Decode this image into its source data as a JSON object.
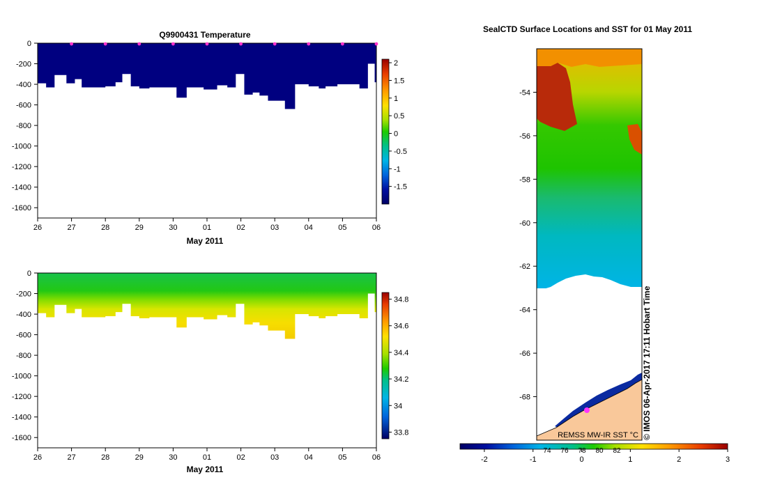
{
  "chart_data": [
    {
      "type": "heatmap",
      "title": "Q9900431  Temperature",
      "xlabel": "May 2011",
      "ylabel": "",
      "x_tick_labels": [
        "26",
        "27",
        "28",
        "29",
        "30",
        "01",
        "02",
        "03",
        "04",
        "05",
        "06"
      ],
      "x_range_days": [
        0,
        10.1
      ],
      "ylim": [
        -1700,
        0
      ],
      "y_ticks": [
        0,
        -200,
        -400,
        -600,
        -800,
        -1000,
        -1200,
        -1400,
        -1600
      ],
      "colorbar": {
        "min": -2.0,
        "max": 2.1,
        "ticks": [
          2,
          1.5,
          1,
          0.5,
          0,
          -0.5,
          -1,
          -1.5
        ]
      },
      "profile_markers_day": [
        1,
        2,
        3,
        4,
        5,
        6,
        7,
        8,
        9,
        10
      ],
      "profile_bottom_depth_m": [
        -390,
        -430,
        -310,
        -390,
        -350,
        -430,
        -430,
        -420,
        -380,
        -300,
        -420,
        -440,
        -430,
        -430,
        -530,
        -430,
        -450,
        -410,
        -430,
        -300,
        -500,
        -480,
        -510,
        -560,
        -640,
        -400,
        -420,
        -440,
        -420,
        -400,
        -400,
        -440,
        -200,
        -380,
        -480
      ],
      "profile_bottom_day_edges": [
        0,
        0.25,
        0.5,
        0.85,
        1.1,
        1.3,
        1.6,
        2.0,
        2.3,
        2.5,
        2.75,
        3.0,
        3.3,
        3.7,
        4.1,
        4.4,
        4.9,
        5.3,
        5.6,
        5.85,
        6.1,
        6.35,
        6.55,
        6.8,
        7.3,
        7.6,
        8.0,
        8.3,
        8.5,
        8.85,
        9.25,
        9.5,
        9.75,
        9.95,
        10.1,
        10.2
      ]
    },
    {
      "type": "heatmap",
      "title": "",
      "xlabel": "May 2011",
      "ylabel": "",
      "x_tick_labels": [
        "26",
        "27",
        "28",
        "29",
        "30",
        "01",
        "02",
        "03",
        "04",
        "05",
        "06"
      ],
      "ylim": [
        -1700,
        0
      ],
      "y_ticks": [
        0,
        -200,
        -400,
        -600,
        -800,
        -1000,
        -1200,
        -1400,
        -1600
      ],
      "colorbar": {
        "min": 33.75,
        "max": 34.85,
        "ticks": [
          34.8,
          34.6,
          34.4,
          34.2,
          34,
          33.8
        ]
      }
    },
    {
      "type": "heatmap",
      "title": "SealCTD Surface Locations and SST for 01 May 2011",
      "xlabel": "",
      "ylabel": "",
      "y_ticks": [
        -54,
        -56,
        -58,
        -60,
        -62,
        -64,
        -66,
        -68
      ],
      "lat_range": [
        -70,
        -52
      ],
      "lon_tick_labels": [
        "74",
        "76",
        "78",
        "80",
        "82"
      ],
      "colorbar": {
        "min": -2.5,
        "max": 3.0,
        "ticks": [
          "-2",
          "-1",
          "0",
          "1",
          "2",
          "3"
        ]
      },
      "legend_text": "REMSS MW-IR SST °C",
      "stamp": "© IMOS 06-Apr-2017 17:11 Hobart Time"
    }
  ]
}
